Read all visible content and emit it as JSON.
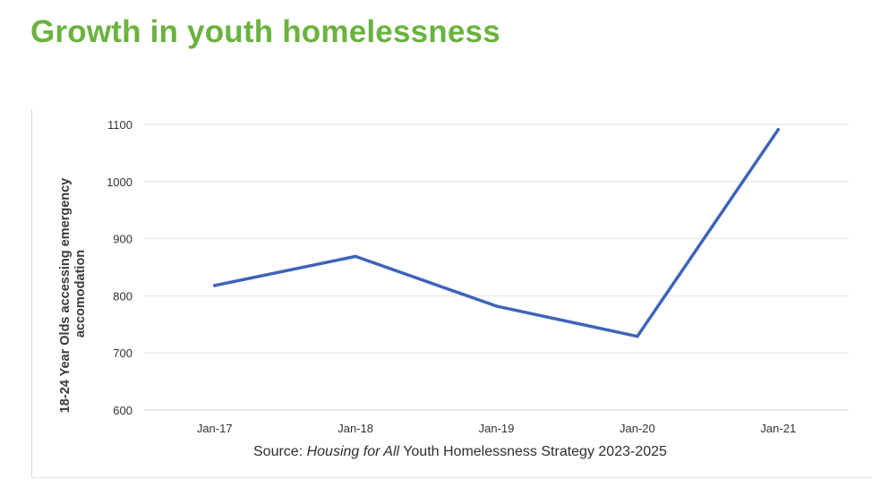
{
  "page": {
    "title": "Growth in youth homelessness"
  },
  "chart_data": {
    "type": "line",
    "title": "",
    "categories": [
      "Jan-17",
      "Jan-18",
      "Jan-19",
      "Jan-20",
      "Jan-21"
    ],
    "series": [
      {
        "values": [
          818,
          869,
          782,
          729,
          1091
        ],
        "color": "#3e64b8"
      }
    ],
    "ylabel_lines": [
      "18-24 Year Olds accessing emergency",
      "accomodation"
    ],
    "xlabel": "",
    "ylim": [
      600,
      1100
    ],
    "yticks": [
      600,
      700,
      800,
      900,
      1000,
      1100
    ],
    "grid": true,
    "legend": "none",
    "source": {
      "prefix": "Source: ",
      "italic": "Housing for All",
      "suffix": " Youth Homelessness Strategy 2023-2025"
    }
  }
}
